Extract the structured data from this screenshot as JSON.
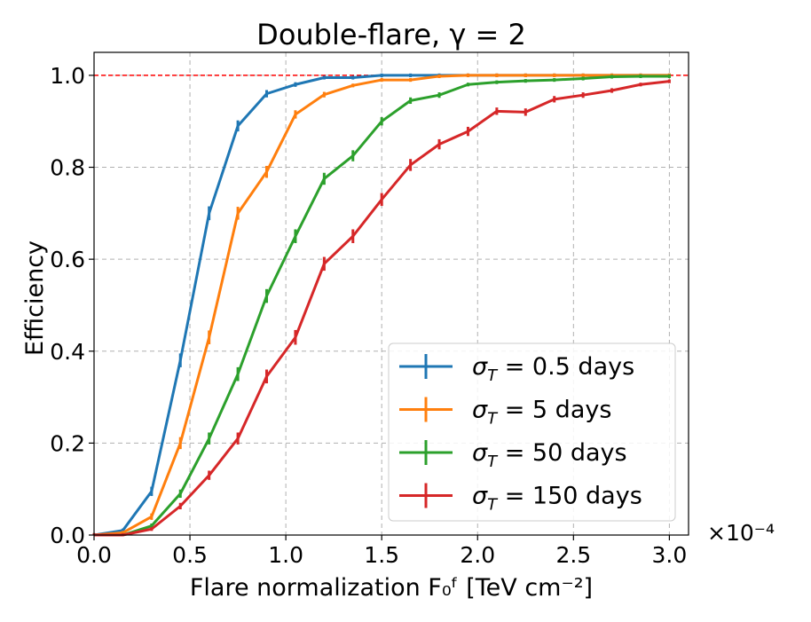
{
  "chart_data": {
    "type": "line",
    "title": "Double-flare, γ = 2",
    "xlabel": "Flare normalization F₀ᶠ [TeV cm⁻²]",
    "ylabel": "Efficiency",
    "x_offset_label": "×10⁻⁴",
    "xlim": [
      0.0,
      3.1
    ],
    "ylim": [
      0.0,
      1.05
    ],
    "xticks": [
      "0.0",
      "0.5",
      "1.0",
      "1.5",
      "2.0",
      "2.5",
      "3.0"
    ],
    "yticks": [
      "0.0",
      "0.2",
      "0.4",
      "0.6",
      "0.8",
      "1.0"
    ],
    "grid": true,
    "reference_line": {
      "y": 1.0,
      "color": "#ff0000",
      "style": "dashed"
    },
    "legend_location": "lower right",
    "x": [
      0.0,
      0.15,
      0.3,
      0.45,
      0.6,
      0.75,
      0.9,
      1.05,
      1.2,
      1.35,
      1.5,
      1.65,
      1.8,
      1.95,
      2.1,
      2.25,
      2.4,
      2.55,
      2.7,
      2.85,
      3.0
    ],
    "series": [
      {
        "name": "σT = 0.5 days",
        "sigma": "T",
        "label_text": " = 0.5 days",
        "color": "#1f77b4",
        "values": [
          0.0,
          0.01,
          0.095,
          0.38,
          0.7,
          0.89,
          0.96,
          0.98,
          0.995,
          0.995,
          1.0,
          1.0,
          1.0,
          1.0,
          1.0,
          1.0,
          1.0,
          1.0,
          1.0,
          1.0,
          1.0
        ],
        "errors": [
          0.0,
          0.004,
          0.01,
          0.015,
          0.015,
          0.012,
          0.008,
          0.005,
          0.003,
          0.003,
          0.0,
          0.0,
          0.0,
          0.0,
          0.0,
          0.0,
          0.0,
          0.0,
          0.0,
          0.0,
          0.0
        ]
      },
      {
        "name": "σT = 5 days",
        "sigma": "T",
        "label_text": " = 5 days",
        "color": "#ff7f0e",
        "values": [
          0.0,
          0.005,
          0.04,
          0.2,
          0.43,
          0.7,
          0.79,
          0.915,
          0.958,
          0.978,
          0.99,
          0.99,
          0.998,
          1.0,
          1.0,
          1.0,
          1.0,
          1.0,
          1.0,
          1.0,
          1.0
        ],
        "errors": [
          0.0,
          0.003,
          0.007,
          0.013,
          0.015,
          0.014,
          0.013,
          0.009,
          0.006,
          0.004,
          0.003,
          0.003,
          0.002,
          0.0,
          0.0,
          0.0,
          0.0,
          0.0,
          0.0,
          0.0,
          0.0
        ]
      },
      {
        "name": "σT = 50 days",
        "sigma": "T",
        "label_text": " = 50 days",
        "color": "#2ca02c",
        "values": [
          0.0,
          0.0,
          0.02,
          0.09,
          0.21,
          0.35,
          0.52,
          0.65,
          0.775,
          0.825,
          0.9,
          0.945,
          0.957,
          0.98,
          0.985,
          0.988,
          0.99,
          0.993,
          0.997,
          0.998,
          0.998
        ],
        "errors": [
          0.0,
          0.0,
          0.005,
          0.009,
          0.013,
          0.015,
          0.015,
          0.015,
          0.013,
          0.012,
          0.009,
          0.007,
          0.006,
          0.004,
          0.004,
          0.003,
          0.003,
          0.002,
          0.002,
          0.001,
          0.001
        ]
      },
      {
        "name": "σT = 150 days",
        "sigma": "T",
        "label_text": " = 150 days",
        "color": "#d62728",
        "values": [
          0.0,
          0.0,
          0.013,
          0.063,
          0.13,
          0.21,
          0.345,
          0.43,
          0.59,
          0.65,
          0.73,
          0.805,
          0.85,
          0.878,
          0.922,
          0.92,
          0.948,
          0.957,
          0.967,
          0.98,
          0.987
        ],
        "errors": [
          0.0,
          0.0,
          0.004,
          0.007,
          0.01,
          0.013,
          0.015,
          0.016,
          0.015,
          0.015,
          0.014,
          0.013,
          0.011,
          0.01,
          0.008,
          0.008,
          0.007,
          0.006,
          0.005,
          0.004,
          0.004
        ]
      }
    ]
  }
}
